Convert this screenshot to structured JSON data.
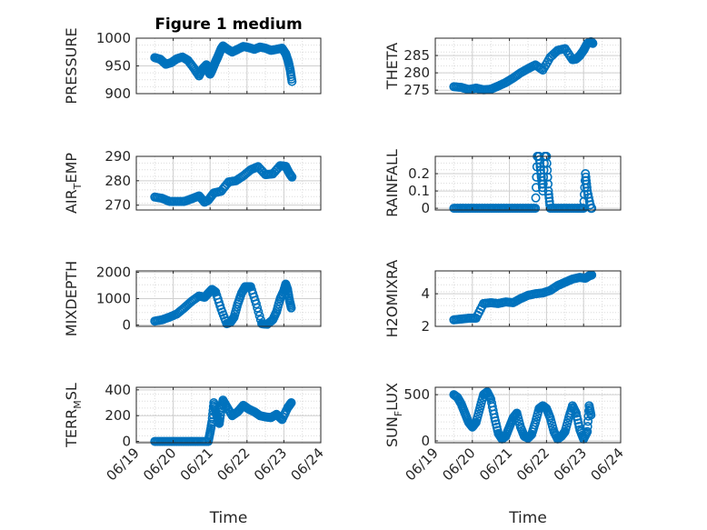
{
  "figure": {
    "background": "#ffffff",
    "marker_color": "#0072BD",
    "axis_color": "#262626",
    "grid_color": "#dcdcdc"
  },
  "chart_data": [
    {
      "type": "scatter",
      "id": "pressure",
      "title": "Figure 1 medium",
      "xlabel": "",
      "ylabel": "PRESSURE",
      "ylim": [
        900,
        1000
      ],
      "yticks": [
        900,
        950,
        1000
      ],
      "ytick_labels": [
        "900",
        "950",
        "1000"
      ],
      "xlim": [
        0,
        5
      ],
      "x": [
        0.5,
        0.65,
        0.8,
        0.95,
        1.1,
        1.25,
        1.4,
        1.55,
        1.7,
        1.8,
        1.9,
        1.95,
        2.0,
        2.05,
        2.1,
        2.15,
        2.2,
        2.25,
        2.3,
        2.35,
        2.45,
        2.6,
        2.75,
        2.9,
        3.05,
        3.2,
        3.35,
        3.5,
        3.65,
        3.8,
        3.95,
        4.05,
        4.12,
        4.17,
        4.22
      ],
      "y": [
        965,
        962,
        953,
        956,
        963,
        966,
        960,
        947,
        932,
        945,
        952,
        940,
        935,
        942,
        950,
        958,
        965,
        973,
        981,
        986,
        981,
        975,
        980,
        985,
        983,
        980,
        984,
        982,
        978,
        980,
        982,
        972,
        958,
        943,
        922
      ],
      "series": [
        {
          "name": "",
          "values": []
        }
      ]
    },
    {
      "type": "scatter",
      "id": "theta",
      "ylabel": "THETA",
      "ylim": [
        274,
        290
      ],
      "yticks": [
        275,
        280,
        285
      ],
      "ytick_labels": [
        "275",
        "280",
        "285"
      ],
      "xlim": [
        0,
        5
      ],
      "x": [
        0.5,
        0.7,
        0.9,
        1.1,
        1.3,
        1.5,
        1.7,
        1.9,
        2.1,
        2.3,
        2.5,
        2.7,
        2.9,
        3.1,
        3.3,
        3.5,
        3.7,
        3.8,
        3.9,
        4.0,
        4.1,
        4.2,
        4.25
      ],
      "y": [
        276,
        275.8,
        275.2,
        275.6,
        275.1,
        275.3,
        276.2,
        277.2,
        278.5,
        280,
        281.2,
        282.3,
        280.8,
        284.5,
        286.5,
        287,
        283.8,
        284,
        285,
        286.5,
        288.5,
        289,
        288.5
      ]
    },
    {
      "type": "scatter",
      "id": "air_temp",
      "ylabel": "AIR_TEMP",
      "ylabel_main": "AIR",
      "ylabel_sub": "T",
      "ylabel_rest": "EMP",
      "ylim": [
        268,
        290
      ],
      "yticks": [
        270,
        280,
        290
      ],
      "ytick_labels": [
        "270",
        "280",
        "290"
      ],
      "xlim": [
        0,
        5
      ],
      "x": [
        0.5,
        0.7,
        0.9,
        1.1,
        1.3,
        1.5,
        1.7,
        1.85,
        1.95,
        2.1,
        2.3,
        2.5,
        2.7,
        2.9,
        3.1,
        3.3,
        3.5,
        3.7,
        3.9,
        4.05,
        4.15,
        4.22
      ],
      "y": [
        273.3,
        272.8,
        271.5,
        271.5,
        271.5,
        272.6,
        273.8,
        271.2,
        272,
        275,
        275.7,
        279.5,
        280,
        282,
        284.5,
        285.8,
        282.5,
        282.8,
        286.2,
        285.9,
        283,
        281.5
      ]
    },
    {
      "type": "scatter",
      "id": "rainfall",
      "ylabel": "RAINFALL",
      "ylim": [
        -0.01,
        0.3
      ],
      "yticks": [
        0,
        0.1,
        0.2
      ],
      "ytick_labels": [
        "0",
        "0.1",
        "0.2"
      ],
      "xlim": [
        0,
        5
      ],
      "x": [
        0.5,
        0.7,
        0.9,
        1.1,
        1.3,
        1.5,
        1.7,
        1.9,
        2.1,
        2.3,
        2.5,
        2.7,
        2.75,
        2.8,
        2.85,
        2.9,
        2.95,
        3.0,
        3.05,
        3.1,
        3.3,
        3.5,
        3.7,
        3.9,
        4.0,
        4.05,
        4.1,
        4.2,
        4.22
      ],
      "y": [
        0,
        0,
        0,
        0,
        0,
        0,
        0,
        0,
        0,
        0,
        0,
        0,
        0.3,
        0.3,
        0.2,
        0.1,
        0.3,
        0.3,
        0.1,
        0,
        0,
        0,
        0,
        0,
        0,
        0.2,
        0.1,
        0,
        0
      ]
    },
    {
      "type": "scatter",
      "id": "mixdepth",
      "ylabel": "MIXDEPTH",
      "ylim": [
        -50,
        2050
      ],
      "yticks": [
        0,
        1000,
        2000
      ],
      "ytick_labels": [
        "0",
        "1000",
        "2000"
      ],
      "xlim": [
        0,
        5
      ],
      "x": [
        0.5,
        0.7,
        0.9,
        1.1,
        1.3,
        1.5,
        1.7,
        1.85,
        1.95,
        2.05,
        2.15,
        2.3,
        2.45,
        2.55,
        2.65,
        2.75,
        2.85,
        2.95,
        3.1,
        3.25,
        3.4,
        3.55,
        3.7,
        3.8,
        3.9,
        4.0,
        4.05,
        4.1,
        4.15,
        4.2
      ],
      "y": [
        150,
        200,
        300,
        420,
        650,
        900,
        1100,
        1050,
        1200,
        1350,
        1250,
        600,
        50,
        100,
        300,
        800,
        1200,
        1450,
        1450,
        800,
        50,
        30,
        200,
        500,
        1000,
        1300,
        1550,
        1350,
        950,
        650
      ]
    },
    {
      "type": "scatter",
      "id": "h2omixra",
      "ylabel": "H2OMIXRA",
      "ylim": [
        2,
        5.4
      ],
      "yticks": [
        2,
        4
      ],
      "ytick_labels": [
        "2",
        "4"
      ],
      "xlim": [
        0,
        5
      ],
      "x": [
        0.5,
        0.7,
        0.9,
        1.1,
        1.3,
        1.5,
        1.7,
        1.9,
        2.1,
        2.3,
        2.5,
        2.7,
        2.9,
        3.1,
        3.3,
        3.5,
        3.7,
        3.9,
        4.05,
        4.15,
        4.22
      ],
      "y": [
        2.4,
        2.45,
        2.5,
        2.5,
        3.4,
        3.45,
        3.4,
        3.5,
        3.45,
        3.7,
        3.9,
        4.0,
        4.05,
        4.2,
        4.5,
        4.7,
        4.9,
        5.0,
        4.95,
        5.1,
        5.15
      ]
    },
    {
      "type": "scatter",
      "id": "terr_msl",
      "ylabel": "TERR_MSL",
      "ylabel_main": "TERR",
      "ylabel_sub": "M",
      "ylabel_rest": "SL",
      "ylim": [
        -10,
        420
      ],
      "yticks": [
        0,
        200,
        400
      ],
      "ytick_labels": [
        "0",
        "200",
        "400"
      ],
      "xlim": [
        0,
        5
      ],
      "x": [
        0.5,
        0.7,
        0.9,
        1.1,
        1.3,
        1.5,
        1.7,
        1.95,
        2.0,
        2.05,
        2.1,
        2.15,
        2.2,
        2.25,
        2.3,
        2.35,
        2.45,
        2.6,
        2.75,
        2.9,
        3.05,
        3.2,
        3.35,
        3.5,
        3.65,
        3.8,
        3.95,
        4.1,
        4.2
      ],
      "y": [
        0,
        0,
        0,
        0,
        0,
        0,
        0,
        0,
        70,
        150,
        300,
        230,
        180,
        140,
        250,
        320,
        270,
        200,
        230,
        280,
        250,
        230,
        200,
        190,
        185,
        210,
        170,
        260,
        300
      ]
    },
    {
      "type": "scatter",
      "id": "sun_flux",
      "ylabel": "SUN_FLUX",
      "ylabel_main": "SUN",
      "ylabel_sub": "F",
      "ylabel_rest": "LUX",
      "ylim": [
        -20,
        580
      ],
      "yticks": [
        0,
        500
      ],
      "ytick_labels": [
        "0",
        "500"
      ],
      "xlim": [
        0,
        5
      ],
      "x": [
        0.5,
        0.6,
        0.7,
        0.8,
        0.9,
        1.0,
        1.1,
        1.2,
        1.3,
        1.4,
        1.5,
        1.6,
        1.7,
        1.8,
        1.9,
        2.0,
        2.1,
        2.2,
        2.3,
        2.4,
        2.5,
        2.6,
        2.7,
        2.8,
        2.9,
        3.0,
        3.1,
        3.2,
        3.3,
        3.4,
        3.5,
        3.6,
        3.7,
        3.8,
        3.9,
        4.0,
        4.1,
        4.15,
        4.2
      ],
      "y": [
        500,
        470,
        400,
        300,
        200,
        150,
        200,
        350,
        500,
        530,
        450,
        250,
        80,
        20,
        50,
        150,
        250,
        300,
        150,
        50,
        30,
        70,
        200,
        350,
        380,
        350,
        250,
        100,
        20,
        50,
        100,
        250,
        380,
        300,
        120,
        20,
        100,
        380,
        280
      ]
    }
  ],
  "shared": {
    "xtick_labels": [
      "06/19",
      "06/20",
      "06/21",
      "06/22",
      "06/23",
      "06/24"
    ],
    "xticks": [
      0,
      1,
      2,
      3,
      4,
      5
    ],
    "xlabel_left": "Time",
    "xlabel_right": "Time",
    "grid": "major+minor dotted"
  }
}
